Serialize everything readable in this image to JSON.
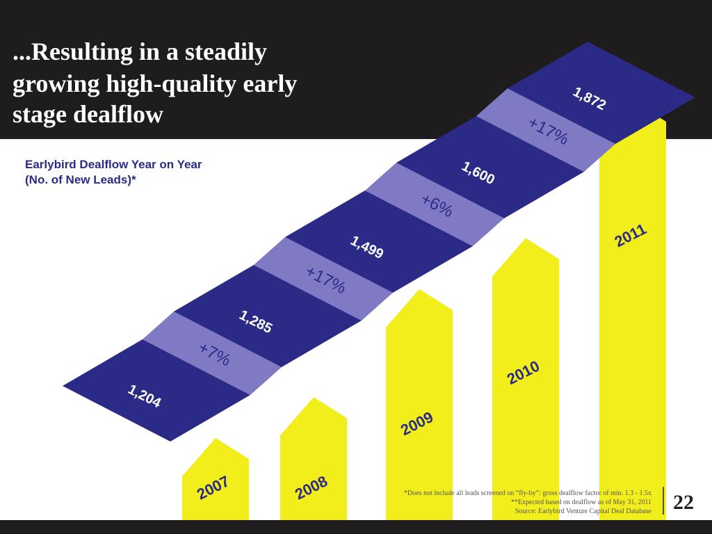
{
  "chart_data": {
    "type": "staircase",
    "title": [
      "...Resulting in a steadily",
      "growing high-quality early",
      "stage dealflow"
    ],
    "subtitle": [
      "Earlybird Dealflow Year on Year",
      "(No. of New Leads)*"
    ],
    "categories": [
      "2007",
      "2008",
      "2009",
      "2010",
      "2011"
    ],
    "values": [
      1204,
      1285,
      1499,
      1600,
      1872
    ],
    "value_labels": [
      "1,204",
      "1,285",
      "1,499",
      "1,600",
      "1,872"
    ],
    "growth": [
      7,
      17,
      6,
      17
    ],
    "growth_labels": [
      "+7%",
      "+17%",
      "+6%",
      "+17%"
    ],
    "tread_color": "#2b2a86",
    "riser_color": "#8079c4",
    "post_color": "#f2ee1c",
    "footnotes": [
      "*Does not include all leads screened on “fly-by”: gross dealflow factor of min. 1.3 - 1.5x",
      "**Expected based on dealflow as of May 31, 2011",
      "Source: Earlybird Venture Capital Deal Database"
    ],
    "page_number": "22"
  }
}
